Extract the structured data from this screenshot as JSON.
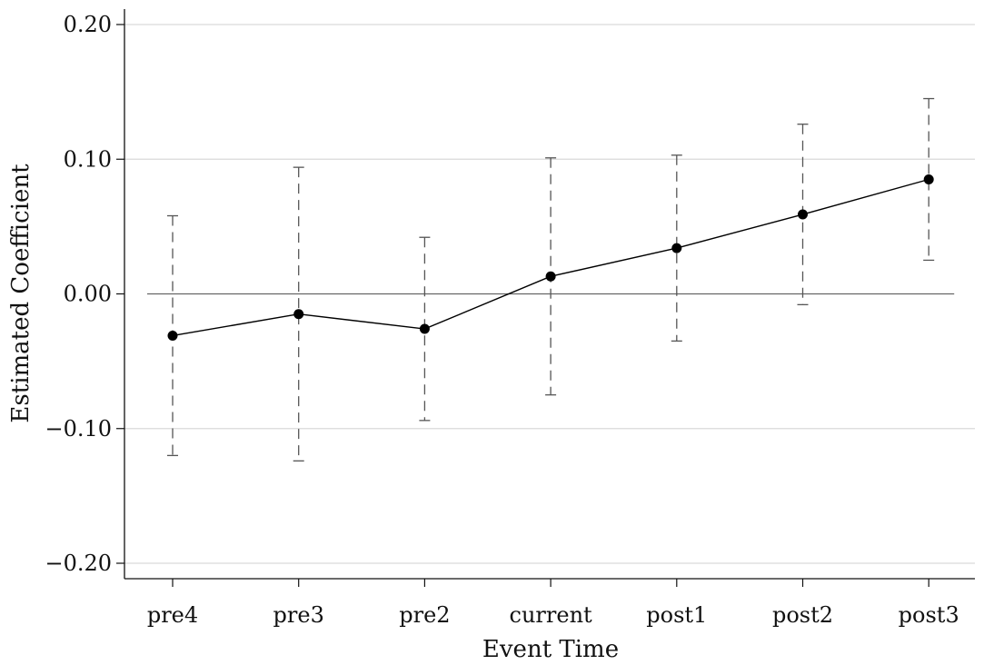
{
  "chart_data": {
    "type": "line",
    "title": "",
    "xlabel": "Event Time",
    "ylabel": "Estimated Coefficient",
    "categories": [
      "pre4",
      "pre3",
      "pre2",
      "current",
      "post1",
      "post2",
      "post3"
    ],
    "values": [
      -0.031,
      -0.015,
      -0.026,
      0.013,
      0.034,
      0.059,
      0.085
    ],
    "ci_lower": [
      -0.12,
      -0.124,
      -0.094,
      -0.075,
      -0.035,
      -0.008,
      0.025
    ],
    "ci_upper": [
      0.058,
      0.094,
      0.042,
      0.101,
      0.103,
      0.126,
      0.145
    ],
    "ylim": [
      -0.21,
      0.21
    ],
    "yticks": [
      -0.2,
      -0.1,
      0.0,
      0.1,
      0.2
    ],
    "ytick_labels": [
      "−0.20",
      "−0.10",
      "0.00",
      "0.10",
      "0.20"
    ],
    "grid": true,
    "zero_line": true,
    "colors": {
      "line": "#000000",
      "marker": "#000000",
      "error_bar": "#555555",
      "grid": "#d9d9d9",
      "zero_line": "#666666"
    }
  }
}
